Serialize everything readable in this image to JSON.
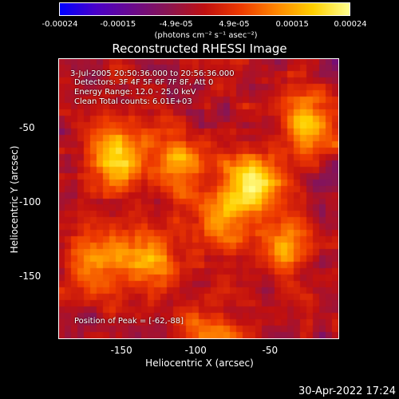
{
  "colorbar": {
    "ticks": [
      "-0.00024",
      "-0.00015",
      "-4.9e-05",
      "4.9e-05",
      "0.00015",
      "0.00024"
    ],
    "unit_label": "(photons cm⁻² s⁻¹ asec⁻²)",
    "colors": [
      "#0000ff",
      "#4a00c8",
      "#6a0a8c",
      "#8a1550",
      "#c01010",
      "#ee3a00",
      "#ff8800",
      "#ffd000",
      "#ffff90"
    ]
  },
  "chart_data": {
    "type": "heatmap",
    "title": "Reconstructed RHESSI Image",
    "xlabel": "Heliocentric X (arcsec)",
    "ylabel": "Heliocentric Y (arcsec)",
    "xlim": [
      -192,
      -4
    ],
    "ylim": [
      -192,
      -4
    ],
    "xticks": [
      -150,
      -100,
      -50
    ],
    "yticks": [
      -50,
      -100,
      -150
    ],
    "x_tick_labels": [
      "-150",
      "-100",
      "-50"
    ],
    "y_tick_labels": [
      "-50",
      "-100",
      "-150"
    ],
    "value_range": [
      -0.00024,
      0.00024
    ],
    "sources": [
      {
        "x": -62,
        "y": -88,
        "peak": 0.00024
      },
      {
        "x": -155,
        "y": -70,
        "peak": 0.00021
      },
      {
        "x": -25,
        "y": -45,
        "peak": 0.00019
      },
      {
        "x": -110,
        "y": -75,
        "peak": 0.00017
      },
      {
        "x": -128,
        "y": -140,
        "peak": 0.00018
      },
      {
        "x": -165,
        "y": -140,
        "peak": 0.00015
      },
      {
        "x": -40,
        "y": -130,
        "peak": 0.00014
      },
      {
        "x": -90,
        "y": -190,
        "peak": 0.00012
      },
      {
        "x": -80,
        "y": -112,
        "peak": 0.00013
      }
    ],
    "annotations": {
      "time": "3-Jul-2005 20:50:36.000 to 20:56:36.000",
      "detectors": "Detectors: 3F 4F 5F 6F 7F 8F, Att 0",
      "energy": "Energy Range: 12.0 - 25.0 keV",
      "clean": "Clean    Total counts: 6.01E+03",
      "peak": "Position of Peak = [-62,-88]"
    }
  },
  "timestamp": "30-Apr-2022 17:24"
}
